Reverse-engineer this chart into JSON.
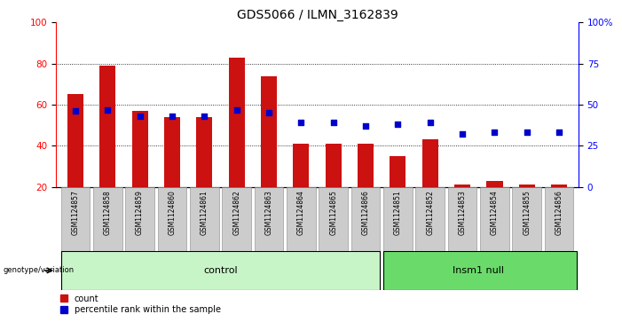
{
  "title": "GDS5066 / ILMN_3162839",
  "samples": [
    "GSM1124857",
    "GSM1124858",
    "GSM1124859",
    "GSM1124860",
    "GSM1124861",
    "GSM1124862",
    "GSM1124863",
    "GSM1124864",
    "GSM1124865",
    "GSM1124866",
    "GSM1124851",
    "GSM1124852",
    "GSM1124853",
    "GSM1124854",
    "GSM1124855",
    "GSM1124856"
  ],
  "counts": [
    65,
    79,
    57,
    54,
    54,
    83,
    74,
    41,
    41,
    41,
    35,
    43,
    21,
    23,
    21,
    21
  ],
  "percentiles": [
    46,
    47,
    43,
    43,
    43,
    47,
    45,
    39,
    39,
    37,
    38,
    39,
    32,
    33,
    33,
    33
  ],
  "control_color": "#c8f5c8",
  "insm1_color": "#6adb6a",
  "bar_color": "#cc1111",
  "dot_color": "#0000cc",
  "ymin": 20,
  "ymax": 100,
  "yticks_left": [
    20,
    40,
    60,
    80,
    100
  ],
  "yticks_right_vals": [
    0,
    25,
    50,
    75,
    100
  ],
  "yticks_right_labels": [
    "0",
    "25",
    "50",
    "75",
    "100%"
  ],
  "grid_vals": [
    40,
    60,
    80
  ],
  "background_color": "#ffffff",
  "tick_label_bg": "#cccccc"
}
